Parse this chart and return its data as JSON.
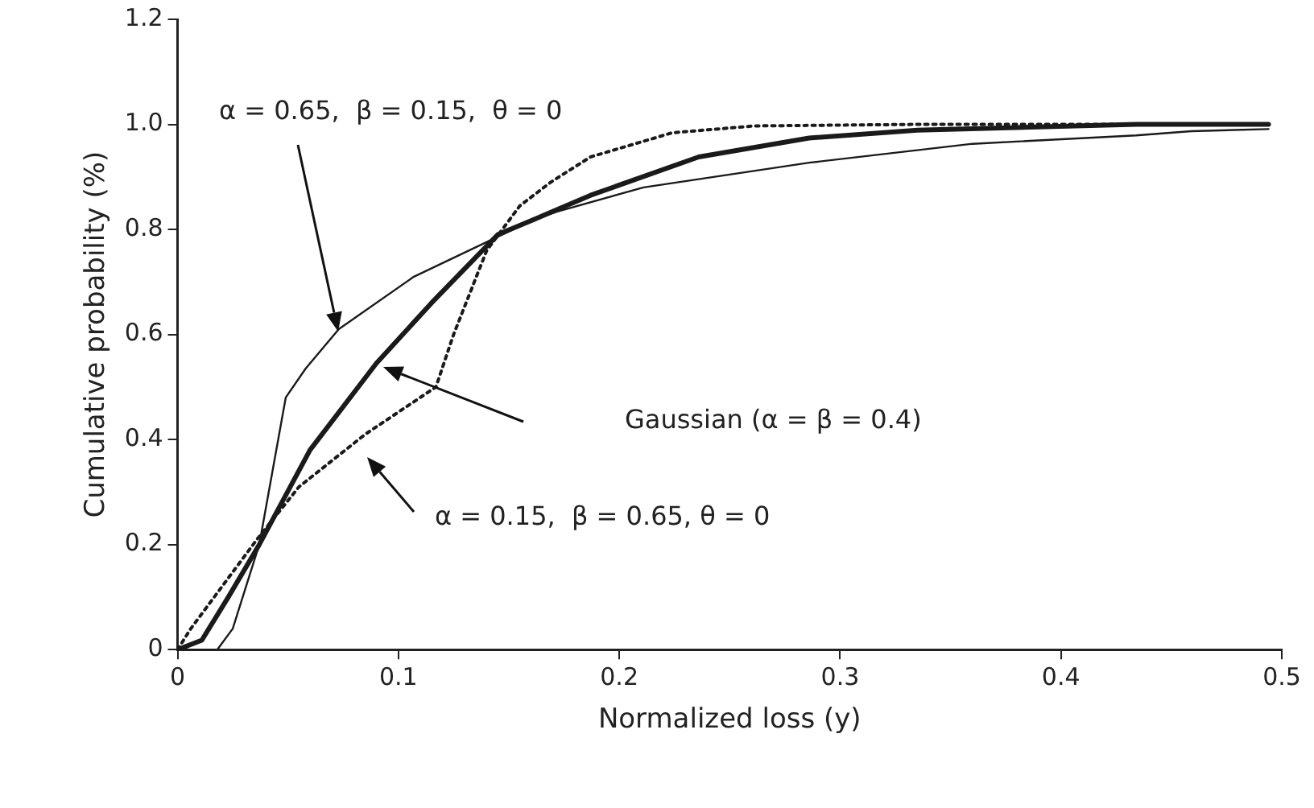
{
  "chart_data": {
    "type": "line",
    "xlabel": "Normalized loss (y)",
    "ylabel": "Cumulative probability (%)",
    "xlim": [
      0,
      0.5
    ],
    "xticks": [
      0,
      0.1,
      0.2,
      0.3,
      0.4,
      0.5
    ],
    "ylim": [
      0,
      1.2
    ],
    "yticks": [
      0,
      0.2,
      0.4,
      0.6,
      0.8,
      {
        "value": 1,
        "label": "1.0"
      },
      1.2
    ],
    "grid": false,
    "legend": false,
    "marker": "none",
    "series": [
      {
        "color": "#1a1a1a",
        "line_style": "solid",
        "x": [
          0,
          0.018,
          0.025,
          0.037,
          0.049,
          0.058,
          0.073,
          0.107,
          0.142,
          0.162,
          0.172,
          0.211,
          0.286,
          0.36,
          0.434,
          0.459,
          0.494
        ],
        "values": [
          0,
          0,
          0.04,
          0.2,
          0.48,
          0.535,
          0.61,
          0.71,
          0.78,
          0.82,
          0.834,
          0.88,
          0.927,
          0.963,
          0.979,
          0.987,
          0.991
        ]
      },
      {
        "color": "#1a1a1a",
        "line_style": "solid",
        "x": [
          0,
          0.011,
          0.023,
          0.037,
          0.06,
          0.09,
          0.115,
          0.145,
          0.162,
          0.187,
          0.236,
          0.286,
          0.335,
          0.434,
          0.494
        ],
        "values": [
          0,
          0.018,
          0.1,
          0.2,
          0.38,
          0.545,
          0.66,
          0.79,
          0.82,
          0.865,
          0.938,
          0.974,
          0.989,
          1,
          1
        ]
      },
      {
        "color": "#1a1a1a",
        "line_style": "dotted",
        "x": [
          0,
          0.006,
          0.036,
          0.055,
          0.085,
          0.117,
          0.125,
          0.14,
          0.155,
          0.169,
          0.187,
          0.224,
          0.261,
          0.335,
          0.494
        ],
        "values": [
          0,
          0.04,
          0.21,
          0.31,
          0.41,
          0.5,
          0.6,
          0.76,
          0.845,
          0.89,
          0.938,
          0.984,
          0.997,
          1,
          1
        ]
      }
    ],
    "annotations": [
      "α = 0.65,  β = 0.15,  θ = 0",
      "Gaussian (α = β = 0.4)",
      "α = 0.15,  β = 0.65, θ = 0"
    ]
  }
}
